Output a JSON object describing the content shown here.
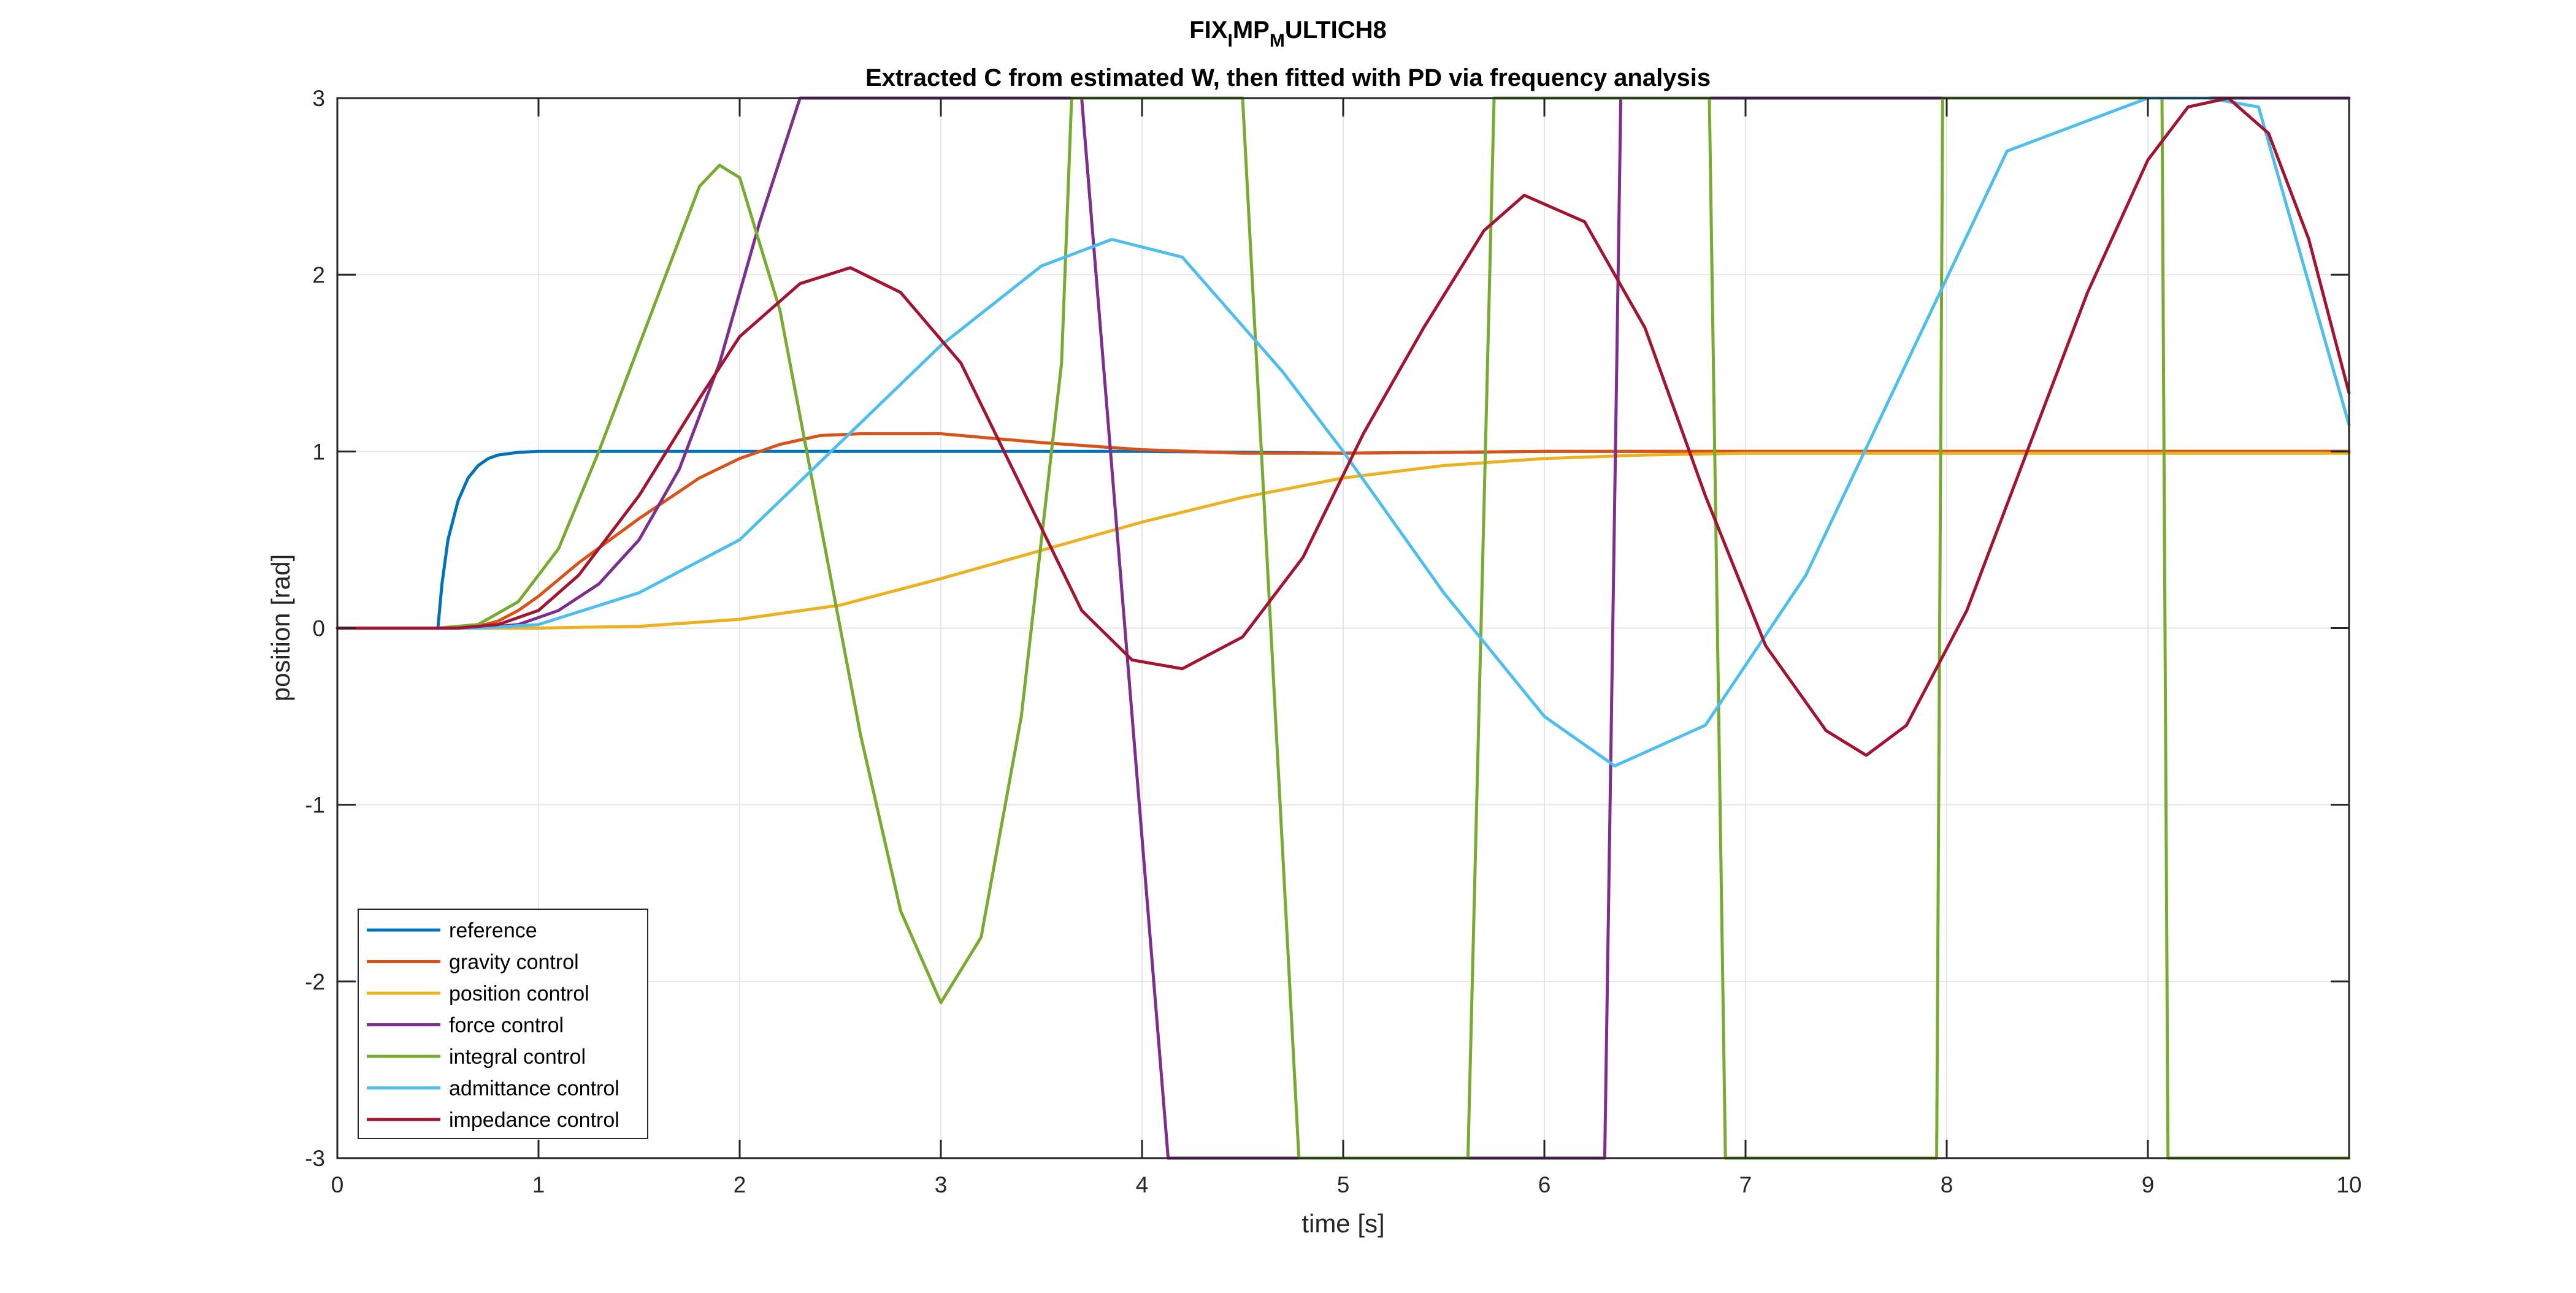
{
  "chart_data": {
    "type": "line",
    "title_parts": [
      "FIX",
      "I",
      "MP",
      "M",
      "ULTICH8"
    ],
    "subtitle": "Extracted C from estimated W, then fitted with PD via frequency analysis",
    "xlabel": "time [s]",
    "ylabel": "position [rad]",
    "xlim": [
      0,
      10
    ],
    "ylim": [
      -3,
      3
    ],
    "xticks": [
      "0",
      "1",
      "2",
      "3",
      "4",
      "5",
      "6",
      "7",
      "8",
      "9",
      "10"
    ],
    "yticks": [
      "-3",
      "-2",
      "-1",
      "0",
      "1",
      "2",
      "3"
    ],
    "grid": true,
    "legend_position": "bottom-left",
    "series": [
      {
        "name": "reference",
        "color": "#0072BD",
        "x": [
          0,
          0.5,
          0.52,
          0.55,
          0.6,
          0.65,
          0.7,
          0.75,
          0.8,
          0.9,
          1,
          1.2,
          2,
          3,
          4,
          5,
          6,
          7,
          8,
          9,
          10
        ],
        "y": [
          0,
          0,
          0.25,
          0.5,
          0.72,
          0.85,
          0.92,
          0.96,
          0.98,
          0.995,
          1,
          1,
          1,
          1,
          1,
          0.99,
          1,
          1,
          1,
          1,
          1
        ]
      },
      {
        "name": "gravity control",
        "color": "#D95319",
        "x": [
          0,
          0.5,
          0.6,
          0.7,
          0.8,
          0.9,
          1,
          1.2,
          1.5,
          1.8,
          2,
          2.2,
          2.4,
          2.6,
          2.8,
          3,
          3.2,
          3.5,
          4,
          4.5,
          5,
          6,
          7,
          8,
          9,
          10
        ],
        "y": [
          0,
          0,
          0,
          0.01,
          0.04,
          0.1,
          0.18,
          0.37,
          0.62,
          0.85,
          0.96,
          1.04,
          1.09,
          1.1,
          1.1,
          1.1,
          1.08,
          1.05,
          1.01,
          0.99,
          0.99,
          1,
          1,
          1,
          1,
          1
        ]
      },
      {
        "name": "position control",
        "color": "#EDB120",
        "x": [
          0,
          1,
          1.5,
          2,
          2.5,
          3,
          3.5,
          4,
          4.5,
          5,
          5.5,
          6,
          6.5,
          7,
          8,
          9,
          10
        ],
        "y": [
          0,
          0,
          0.01,
          0.05,
          0.13,
          0.28,
          0.44,
          0.6,
          0.74,
          0.85,
          0.92,
          0.96,
          0.98,
          0.99,
          0.99,
          0.99,
          0.99
        ]
      },
      {
        "name": "force control",
        "color": "#7E2F8E",
        "x": [
          0,
          0.5,
          0.7,
          0.9,
          1.1,
          1.3,
          1.5,
          1.7,
          1.9,
          2.1,
          2.3,
          3.7,
          4.13,
          6.3,
          6.38,
          10
        ],
        "y": [
          0,
          0,
          0,
          0.02,
          0.1,
          0.25,
          0.5,
          0.9,
          1.5,
          2.3,
          3,
          3,
          -3,
          -3,
          3,
          3
        ]
      },
      {
        "name": "integral control",
        "color": "#77AC30",
        "x": [
          0,
          0.5,
          0.7,
          0.9,
          1.1,
          1.3,
          1.5,
          1.7,
          1.8,
          1.9,
          2,
          2.2,
          2.4,
          2.6,
          2.8,
          3,
          3.2,
          3.4,
          3.6,
          3.65,
          4.5,
          4.78,
          5.62,
          5.75,
          6.82,
          6.9,
          7.95,
          7.98,
          9.07,
          9.1,
          10
        ],
        "y": [
          0,
          0,
          0.02,
          0.15,
          0.45,
          1,
          1.6,
          2.2,
          2.5,
          2.62,
          2.55,
          1.8,
          0.6,
          -0.6,
          -1.6,
          -2.12,
          -1.75,
          -0.5,
          1.5,
          3,
          3,
          -3,
          -3,
          3,
          3,
          -3,
          -3,
          3,
          3,
          -3,
          -3
        ]
      },
      {
        "name": "admittance control",
        "color": "#4DBEEE",
        "x": [
          0,
          0.7,
          1,
          1.5,
          2,
          2.5,
          3,
          3.5,
          3.85,
          4.2,
          4.7,
          5,
          5.5,
          6,
          6.35,
          6.8,
          7.3,
          7.8,
          8.3,
          9,
          9.3,
          9.55,
          10
        ],
        "y": [
          0,
          0,
          0.02,
          0.2,
          0.5,
          1.05,
          1.6,
          2.05,
          2.2,
          2.1,
          1.45,
          1,
          0.2,
          -0.5,
          -0.78,
          -0.55,
          0.3,
          1.5,
          2.7,
          3,
          3,
          2.95,
          1.15
        ]
      },
      {
        "name": "impedance control",
        "color": "#A2142F",
        "x": [
          0,
          0.6,
          0.8,
          1,
          1.2,
          1.5,
          1.8,
          2,
          2.3,
          2.55,
          2.8,
          3.1,
          3.4,
          3.7,
          3.95,
          4.2,
          4.5,
          4.8,
          5.1,
          5.4,
          5.7,
          5.9,
          6.2,
          6.5,
          6.8,
          7.1,
          7.4,
          7.6,
          7.8,
          8.1,
          8.4,
          8.7,
          9,
          9.2,
          9.4,
          9.6,
          9.8,
          10
        ],
        "y": [
          0,
          0,
          0.02,
          0.1,
          0.3,
          0.75,
          1.3,
          1.65,
          1.95,
          2.04,
          1.9,
          1.5,
          0.8,
          0.1,
          -0.18,
          -0.23,
          -0.05,
          0.4,
          1.1,
          1.7,
          2.25,
          2.45,
          2.3,
          1.7,
          0.75,
          -0.1,
          -0.58,
          -0.72,
          -0.55,
          0.1,
          1,
          1.9,
          2.65,
          2.95,
          3,
          2.8,
          2.2,
          1.33
        ]
      }
    ]
  }
}
